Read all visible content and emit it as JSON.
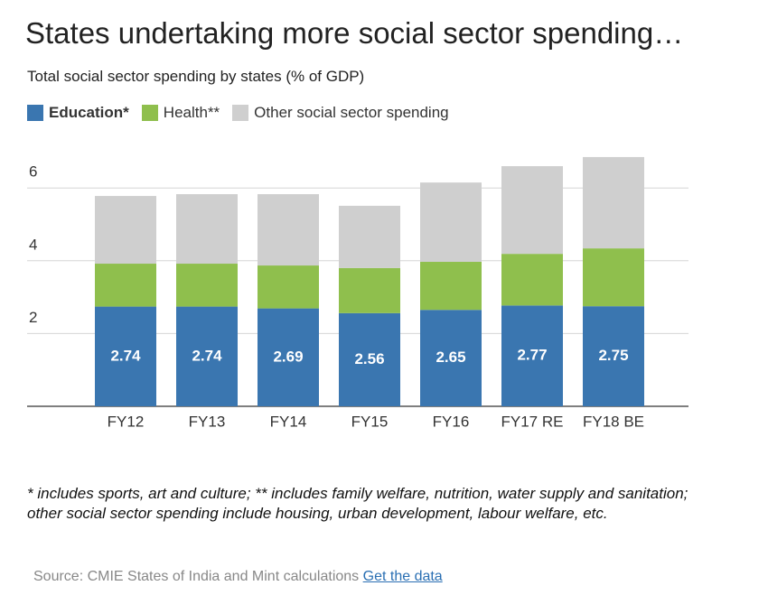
{
  "chart_data": {
    "type": "stacked_bar",
    "title": "States undertaking more social sector spending…",
    "subtitle": "Total social sector spending by states (% of GDP)",
    "categories": [
      "FY12",
      "FY13",
      "FY14",
      "FY15",
      "FY16",
      "FY17 RE",
      "FY18 BE"
    ],
    "series": [
      {
        "name": "Education*",
        "color": "#3a76b0",
        "values": [
          2.74,
          2.74,
          2.69,
          2.56,
          2.65,
          2.77,
          2.75
        ]
      },
      {
        "name": "Health**",
        "color": "#8fbf4d",
        "values": [
          1.18,
          1.18,
          1.18,
          1.24,
          1.32,
          1.42,
          1.59
        ]
      },
      {
        "name": "Other social sector spending",
        "color": "#cfcfcf",
        "values": [
          1.86,
          1.91,
          1.96,
          1.71,
          2.18,
          2.41,
          2.51
        ]
      }
    ],
    "ylim": [
      0,
      7
    ],
    "yticks": [
      2,
      4,
      6
    ],
    "grid": true,
    "footnote": "* includes sports, art and culture; ** includes family welfare, nutrition, water supply and sanitation; other social sector spending include housing, urban development, labour welfare, etc.",
    "source": "Source: CMIE States of India and Mint calculations",
    "link": "Get the data"
  }
}
